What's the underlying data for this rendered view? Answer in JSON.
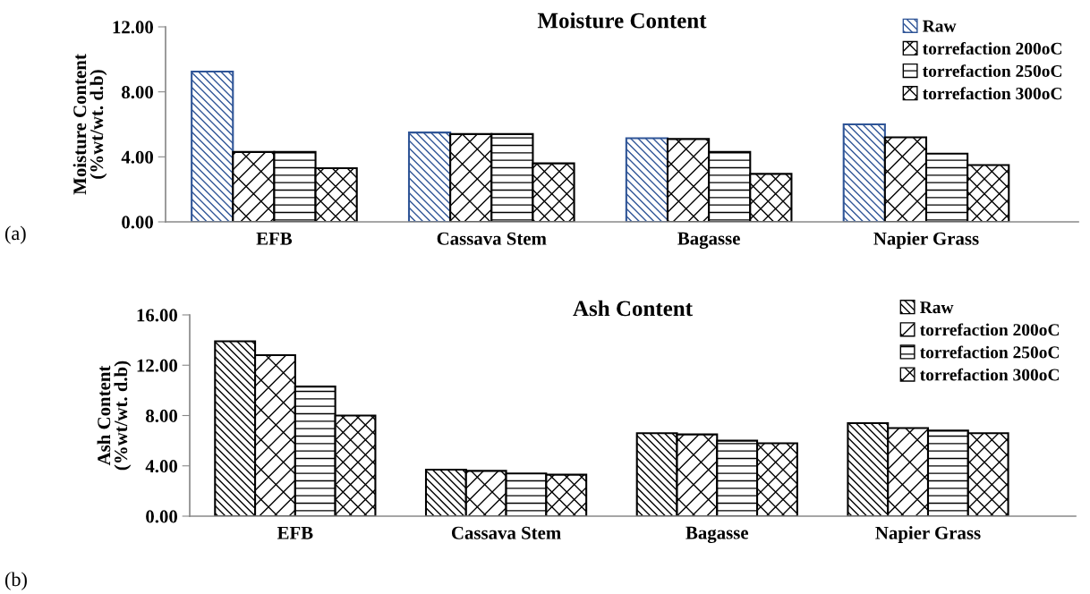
{
  "chart_data": [
    {
      "type": "bar",
      "title": "Moisture Content",
      "ylabel": "Moisture Content\n(%wt/wt. d.b)",
      "categories": [
        "EFB",
        "Cassava Stem",
        "Bagasse",
        "Napier Grass"
      ],
      "series": [
        {
          "name": "Raw",
          "color": "#2f5597",
          "values": [
            9.25,
            5.5,
            5.15,
            6.0
          ]
        },
        {
          "name": "torrefaction 200oC",
          "color": "#000000",
          "values": [
            4.3,
            5.4,
            5.1,
            5.2
          ]
        },
        {
          "name": "torrefaction 250oC",
          "color": "#000000",
          "values": [
            4.3,
            5.4,
            4.3,
            4.2
          ]
        },
        {
          "name": "torrefaction 300oC",
          "color": "#000000",
          "values": [
            3.3,
            3.6,
            2.95,
            3.5
          ]
        }
      ],
      "ylim": [
        0,
        12
      ],
      "yticks": [
        {
          "value": 0,
          "label": "0.00"
        },
        {
          "value": 4,
          "label": "4.00"
        },
        {
          "value": 8,
          "label": "8.00"
        },
        {
          "value": 12,
          "label": "12.00"
        }
      ],
      "grid": false,
      "legend": "top right",
      "annotations": [
        "(a)"
      ]
    },
    {
      "type": "bar",
      "title": "Ash Content",
      "ylabel": "Ash Content\n(%wt/wt. d.b)",
      "categories": [
        "EFB",
        "Cassava Stem",
        "Bagasse",
        "Napier Grass"
      ],
      "series": [
        {
          "name": "Raw",
          "color": "#000000",
          "values": [
            13.9,
            3.7,
            6.6,
            7.4
          ]
        },
        {
          "name": "torrefaction 200oC",
          "color": "#000000",
          "values": [
            12.8,
            3.6,
            6.5,
            7.0
          ]
        },
        {
          "name": "torrefaction 250oC",
          "color": "#000000",
          "values": [
            10.3,
            3.4,
            6.0,
            6.8
          ]
        },
        {
          "name": "torrefaction 300oC",
          "color": "#000000",
          "values": [
            8.0,
            3.3,
            5.8,
            6.6
          ]
        }
      ],
      "ylim": [
        0,
        16
      ],
      "yticks": [
        {
          "value": 0,
          "label": "0.00"
        },
        {
          "value": 4,
          "label": "4.00"
        },
        {
          "value": 8,
          "label": "8.00"
        },
        {
          "value": 12,
          "label": "12.00"
        },
        {
          "value": 16,
          "label": "16.00"
        }
      ],
      "grid": false,
      "legend": "top right",
      "annotations": [
        "(b)"
      ]
    }
  ]
}
